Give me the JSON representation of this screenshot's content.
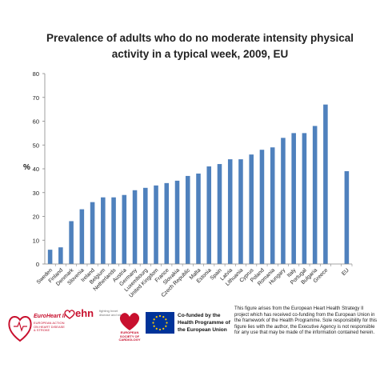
{
  "chart_data": {
    "type": "bar",
    "title": "Prevalence of adults who do no moderate intensity physical activity in a typical week, 2009, EU",
    "ylabel": "%",
    "xlabel": "",
    "ylim": [
      0,
      80
    ],
    "yticks": [
      0,
      10,
      20,
      30,
      40,
      50,
      60,
      70,
      80
    ],
    "grid": false,
    "legend": "none",
    "color": "#4f81bd",
    "categories": [
      "Sweden",
      "Finland",
      "Denmark",
      "Slovenia",
      "Ireland",
      "Belgium",
      "Netherlands",
      "Austria",
      "Germany",
      "Luxembourg",
      "United Kingdom",
      "France",
      "Slovakia",
      "Czech Republic",
      "Malta",
      "Estonia",
      "Spain",
      "Latvia",
      "Lithuania",
      "Cyprus",
      "Poland",
      "Romania",
      "Hungary",
      "Italy",
      "Portugal",
      "Bulgaria",
      "Greece",
      "",
      "EU"
    ],
    "values": [
      6,
      7,
      18,
      23,
      26,
      28,
      28,
      29,
      31,
      32,
      33,
      34,
      35,
      37,
      38,
      41,
      42,
      44,
      44,
      46,
      48,
      49,
      53,
      55,
      55,
      58,
      67,
      null,
      39
    ]
  },
  "footer": {
    "logo_euroheart": "EuroHeart II",
    "euroheart_sub": "EUROPEAN ACTION ON HEART DISEASE & STROKE",
    "logo_ehn": "ehn",
    "ehn_sub": "fighting heart disease and stroke",
    "esc_text": "EUROPEAN SOCIETY OF CARDIOLOGY",
    "cofund_text": "Co-funded by the Health Programme of the European Union",
    "disclaimer": "This figure arises from the European Heart Health Strategy II project which has received co-funding from the European Union in the framework of the Health Programme. Sole responsibility for this figure lies with the author, the Executive Agency is not responsible for any use that may be made of the information contained herein."
  }
}
